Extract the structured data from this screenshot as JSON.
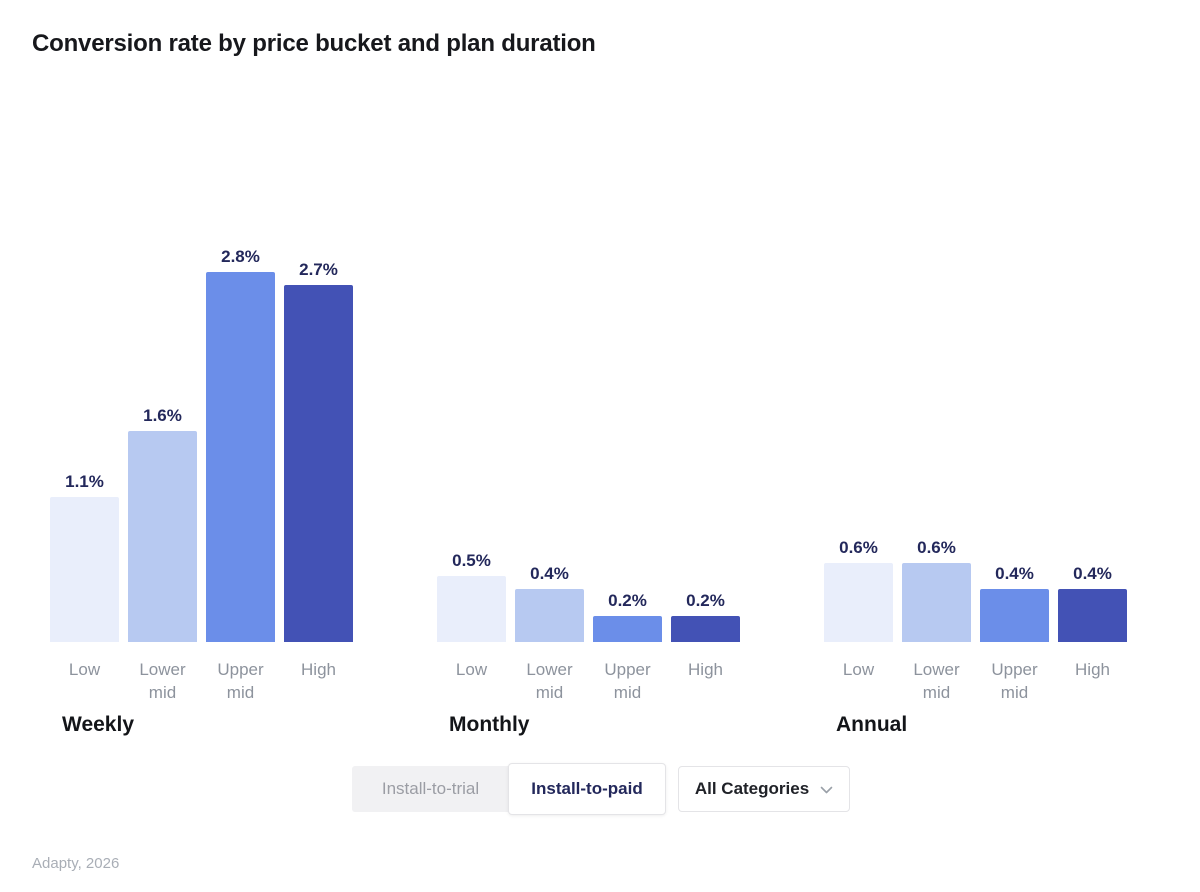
{
  "title": "Conversion rate by price bucket and plan duration",
  "chart_data": {
    "type": "bar",
    "title": "Conversion rate by price bucket and plan duration",
    "unit": "%",
    "categories": [
      "Low",
      "Lower mid",
      "Upper mid",
      "High"
    ],
    "series": [
      {
        "name": "Weekly",
        "values": [
          1.1,
          1.6,
          2.8,
          2.7
        ],
        "labels": [
          "1.1%",
          "1.6%",
          "2.8%",
          "2.7%"
        ]
      },
      {
        "name": "Monthly",
        "values": [
          0.5,
          0.4,
          0.2,
          0.2
        ],
        "labels": [
          "0.5%",
          "0.4%",
          "0.2%",
          "0.2%"
        ]
      },
      {
        "name": "Annual",
        "values": [
          0.6,
          0.6,
          0.4,
          0.4
        ],
        "labels": [
          "0.6%",
          "0.6%",
          "0.4%",
          "0.4%"
        ]
      }
    ],
    "bar_colors": [
      "#E9EEFB",
      "#B7C9F1",
      "#6B8EE9",
      "#4352B5"
    ],
    "value_label_color": "#23285B",
    "ylim": [
      0,
      2.8
    ],
    "grid": false,
    "legend": false
  },
  "controls": {
    "metric_toggle": {
      "options": [
        {
          "label": "Install-to-trial",
          "selected": false
        },
        {
          "label": "Install-to-paid",
          "selected": true
        }
      ]
    },
    "category_dropdown": {
      "value": "All Categories",
      "icon": "chevron-down-icon"
    }
  },
  "attribution": "Adapty, 2026"
}
